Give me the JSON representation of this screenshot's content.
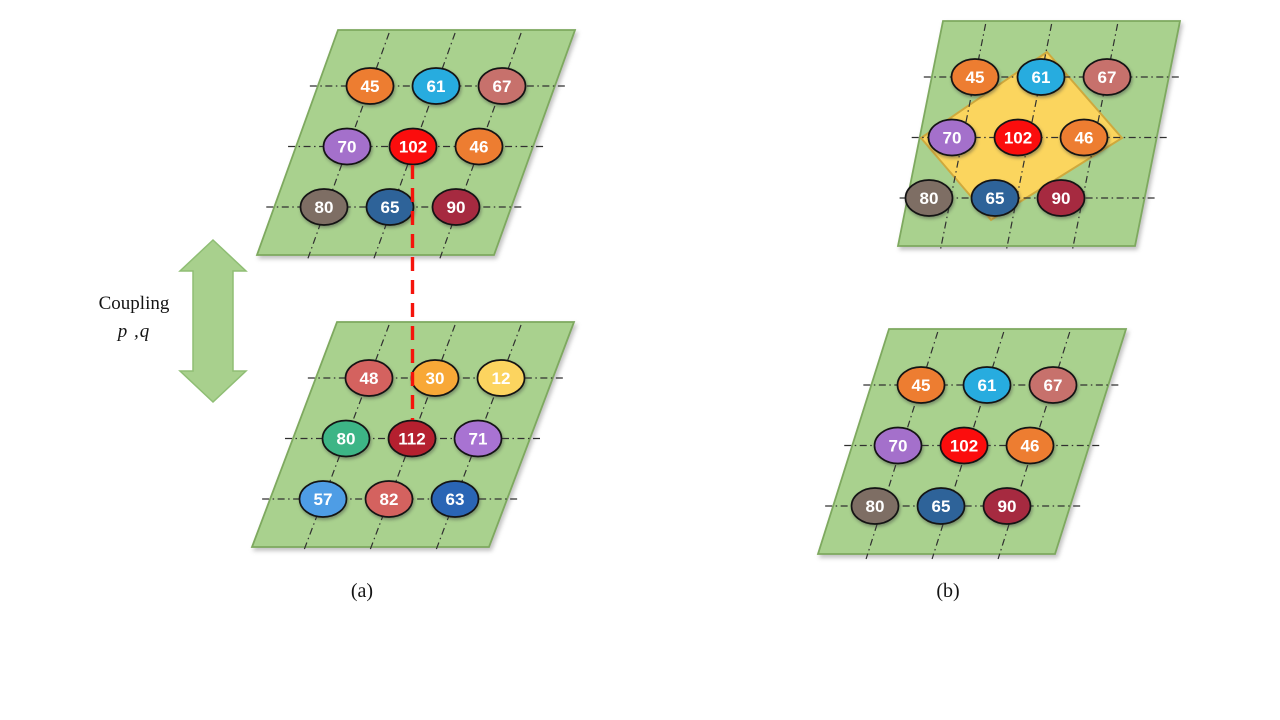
{
  "labels": {
    "coupling_title": "Coupling",
    "coupling_params": "p ,q",
    "caption_a": "(a)",
    "caption_b": "(b)"
  },
  "colors": {
    "background": "#ffffff",
    "plane_fill": "#a9d18e",
    "plane_stroke": "#7ea95f",
    "grid_line": "#303030",
    "node_stroke": "#141414",
    "node_text": "#ffffff",
    "diamond_fill": "#fbd55e",
    "diamond_stroke": "#cfa93d",
    "arrow_fill": "#a8d08d",
    "arrow_stroke": "#8fbe74",
    "coupling_line": "#f5140c"
  },
  "planes": [
    {
      "id": "plane-a-top",
      "panel": "a",
      "position": "top",
      "nodes": [
        [
          "45",
          "61",
          "67"
        ],
        [
          "70",
          "102",
          "46"
        ],
        [
          "80",
          "65",
          "90"
        ]
      ],
      "node_colors": [
        [
          "#ed7d31",
          "#27acdf",
          "#c7716c"
        ],
        [
          "#a470cb",
          "#fb0d0d",
          "#ed7d31"
        ],
        [
          "#7e6e64",
          "#2e6399",
          "#a62a40"
        ]
      ]
    },
    {
      "id": "plane-a-bottom",
      "panel": "a",
      "position": "bottom",
      "nodes": [
        [
          "48",
          "30",
          "12"
        ],
        [
          "80",
          "112",
          "71"
        ],
        [
          "57",
          "82",
          "63"
        ]
      ],
      "node_colors": [
        [
          "#d4625f",
          "#f8a837",
          "#fcd45f"
        ],
        [
          "#3db586",
          "#b5202f",
          "#a873d2"
        ],
        [
          "#4e9de5",
          "#d4625f",
          "#2a65b5"
        ]
      ]
    },
    {
      "id": "plane-b-top",
      "panel": "b",
      "position": "top",
      "highlight": "yellow-diamond",
      "nodes": [
        [
          "45",
          "61",
          "67"
        ],
        [
          "70",
          "102",
          "46"
        ],
        [
          "80",
          "65",
          "90"
        ]
      ],
      "node_colors": [
        [
          "#ed7d31",
          "#27acdf",
          "#c7716c"
        ],
        [
          "#a470cb",
          "#fb0d0d",
          "#ed7d31"
        ],
        [
          "#7e6e64",
          "#2e6399",
          "#a62a40"
        ]
      ]
    },
    {
      "id": "plane-b-bottom",
      "panel": "b",
      "position": "bottom",
      "nodes": [
        [
          "45",
          "61",
          "67"
        ],
        [
          "70",
          "102",
          "46"
        ],
        [
          "80",
          "65",
          "90"
        ]
      ],
      "node_colors": [
        [
          "#ed7d31",
          "#27acdf",
          "#c7716c"
        ],
        [
          "#a470cb",
          "#fb0d0d",
          "#ed7d31"
        ],
        [
          "#7e6e64",
          "#2e6399",
          "#a62a40"
        ]
      ]
    }
  ],
  "coupling_edge": {
    "from_node": "102",
    "to_node": "112"
  }
}
